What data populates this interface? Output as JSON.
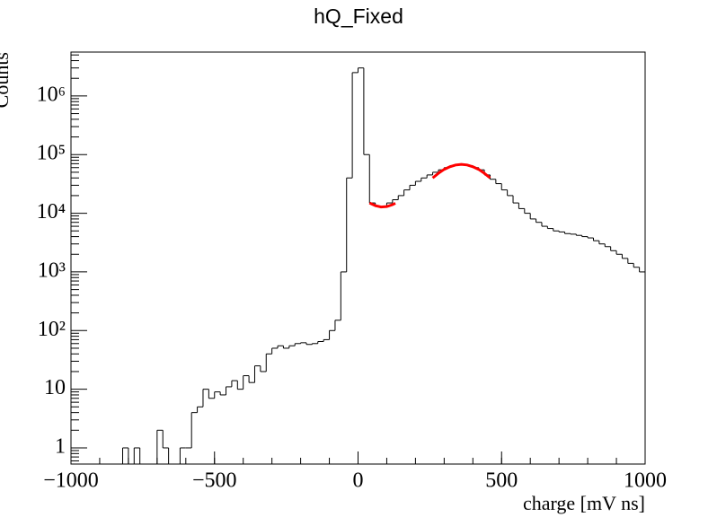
{
  "chart_data": {
    "type": "histogram",
    "title": "hQ_Fixed",
    "x_label": "charge [mV ns]",
    "y_label": "Counts",
    "bins": [
      -1000,
      -980,
      -960,
      -940,
      -920,
      -900,
      -880,
      -860,
      -840,
      -820,
      -800,
      -780,
      -760,
      -740,
      -720,
      -700,
      -680,
      -660,
      -640,
      -620,
      -600,
      -580,
      -560,
      -540,
      -520,
      -500,
      -480,
      -460,
      -440,
      -420,
      -400,
      -380,
      -360,
      -340,
      -320,
      -300,
      -280,
      -260,
      -240,
      -220,
      -200,
      -180,
      -160,
      -140,
      -120,
      -100,
      -80,
      -60,
      -40,
      -20,
      0,
      20,
      40,
      60,
      80,
      100,
      120,
      140,
      160,
      180,
      200,
      220,
      240,
      260,
      280,
      300,
      320,
      340,
      360,
      380,
      400,
      420,
      440,
      460,
      480,
      500,
      520,
      540,
      560,
      580,
      600,
      620,
      640,
      660,
      680,
      700,
      720,
      740,
      760,
      780,
      800,
      820,
      840,
      860,
      880,
      900,
      920,
      940,
      960,
      980,
      1000
    ],
    "values": [
      0,
      0,
      0,
      0,
      0,
      0,
      0,
      0,
      0,
      1,
      0,
      1,
      0,
      0,
      0,
      2,
      1,
      0,
      0,
      1,
      1,
      4,
      5,
      10,
      7,
      9,
      8,
      11,
      14,
      10,
      17,
      13,
      25,
      20,
      40,
      50,
      55,
      50,
      55,
      60,
      62,
      58,
      60,
      65,
      70,
      100,
      150,
      1000,
      40000,
      2500000,
      3000000,
      100000,
      15000,
      13000,
      13000,
      15000,
      17000,
      20000,
      25000,
      30000,
      35000,
      40000,
      45000,
      50000,
      55000,
      60000,
      65000,
      68000,
      68000,
      65000,
      60000,
      55000,
      45000,
      38000,
      32000,
      25000,
      20000,
      15000,
      12000,
      10000,
      8000,
      7000,
      6000,
      5500,
      5000,
      4800,
      4500,
      4400,
      4200,
      4000,
      3800,
      3400,
      3000,
      2700,
      2300,
      2000,
      1700,
      1400,
      1200,
      1000
    ],
    "color": "#000000",
    "fits": [
      {
        "color": "#ff0000",
        "x": [
          40,
          60,
          80,
          100,
          120,
          130
        ],
        "values": [
          15000,
          13500,
          12800,
          13000,
          14000,
          14800
        ]
      },
      {
        "color": "#ff0000",
        "x": [
          260,
          280,
          300,
          320,
          340,
          360,
          380,
          400,
          420,
          440,
          460
        ],
        "values": [
          40000,
          48000,
          56000,
          62000,
          66500,
          68000,
          66500,
          62000,
          56000,
          48000,
          40000
        ]
      }
    ],
    "xlim": [
      -1000,
      1000
    ],
    "xticks": [
      {
        "value": -1000,
        "label": "−1000"
      },
      {
        "value": -500,
        "label": "−500"
      },
      0,
      500,
      1000
    ],
    "ylim": [
      0.53,
      5600000
    ],
    "log_y": true,
    "yticks": [
      1,
      10,
      {
        "value": 100,
        "label": "10²"
      },
      {
        "value": 1000,
        "label": "10³"
      },
      {
        "value": 10000,
        "label": "10⁴"
      },
      {
        "value": 100000,
        "label": "10⁵"
      },
      {
        "value": 1000000,
        "label": "10⁶"
      }
    ]
  }
}
